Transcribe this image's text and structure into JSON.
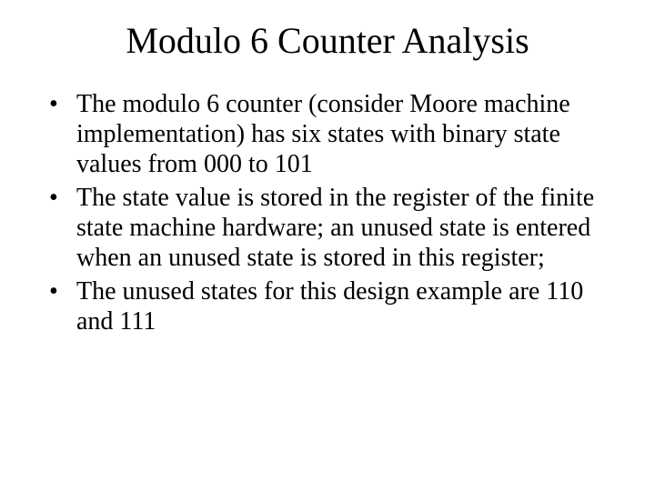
{
  "title": "Modulo 6 Counter Analysis",
  "bullets": [
    "The modulo 6 counter (consider Moore machine implementation) has six states with binary state values from 000 to 101",
    "The state value is stored in the register of the finite state machine hardware; an unused state is entered when an unused state is stored in this register;",
    "The unused states for this design example are 110 and 111"
  ]
}
